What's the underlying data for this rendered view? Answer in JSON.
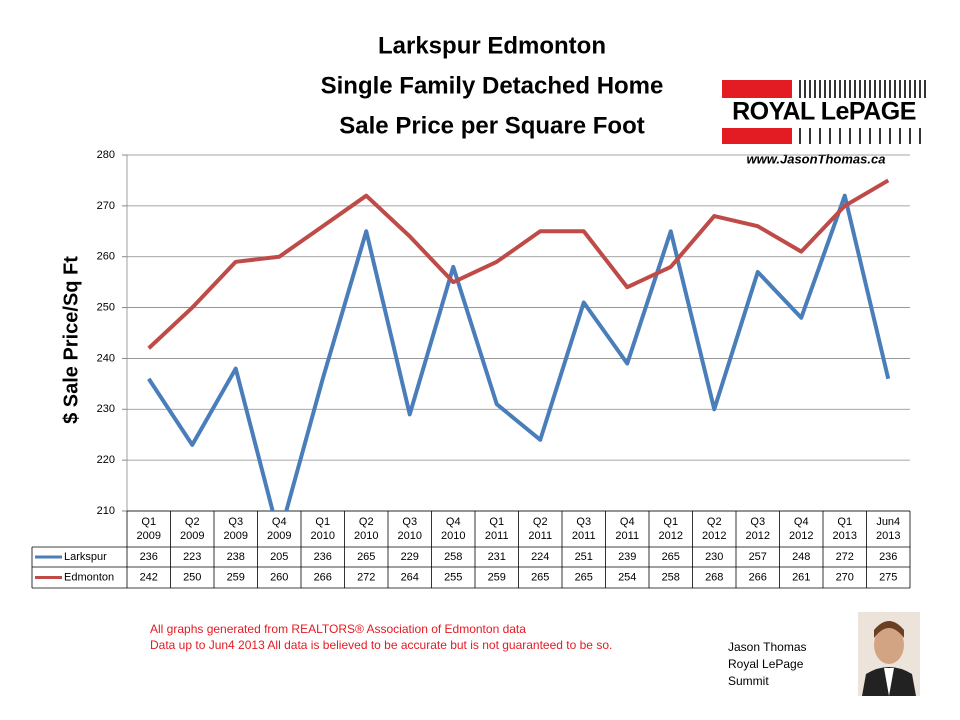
{
  "chart_data": {
    "type": "line",
    "title": [
      "Larkspur Edmonton",
      "Single Family Detached Home",
      "Sale Price per Square Foot"
    ],
    "y_label": "$ Sale Price/Sq Ft",
    "categories": [
      "Q1 2009",
      "Q2 2009",
      "Q3 2009",
      "Q4 2009",
      "Q1 2010",
      "Q2 2010",
      "Q3 2010",
      "Q4 2010",
      "Q1 2011",
      "Q2 2011",
      "Q3 2011",
      "Q4 2011",
      "Q1 2012",
      "Q2 2012",
      "Q3 2012",
      "Q4 2012",
      "Q1 2013",
      "Jun4 2013"
    ],
    "series": [
      {
        "name": "Larkspur",
        "color": "#4a7ebb",
        "values": [
          236,
          223,
          238,
          205,
          236,
          265,
          229,
          258,
          231,
          224,
          251,
          239,
          265,
          230,
          257,
          248,
          272,
          236
        ]
      },
      {
        "name": "Edmonton",
        "color": "#be4b48",
        "values": [
          242,
          250,
          259,
          260,
          266,
          272,
          264,
          255,
          259,
          265,
          265,
          254,
          258,
          268,
          266,
          261,
          270,
          275
        ]
      }
    ],
    "ylim": [
      210,
      280
    ],
    "yticks": [
      210,
      220,
      230,
      240,
      250,
      260,
      270,
      280
    ],
    "grid": true
  },
  "logo": {
    "brand": "ROYAL LePAGE",
    "website": "www.JasonThomas.ca"
  },
  "footer": {
    "notes": [
      "All graphs generated from REALTORS® Association of Edmonton data",
      "Data up to  Jun4 2013  All data is believed to be accurate but is not guaranteed to be so."
    ],
    "author": [
      "Jason Thomas",
      "Royal LePage",
      "Summit"
    ]
  }
}
